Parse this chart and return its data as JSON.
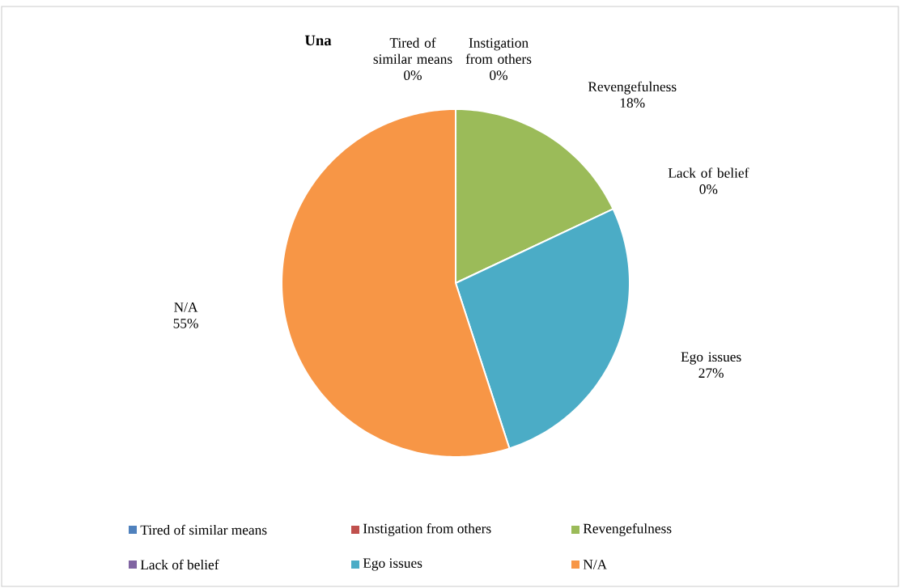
{
  "chart_data": {
    "type": "pie",
    "title": "Una",
    "categories": [
      "Tired of similar means",
      "Instigation from others",
      "Revengefulness",
      "Lack of belief",
      "Ego issues",
      "N/A"
    ],
    "values": [
      0,
      0,
      18,
      0,
      27,
      55
    ],
    "value_labels": [
      "0%",
      "0%",
      "18%",
      "0%",
      "27%",
      "55%"
    ],
    "colors": [
      "#4f81bd",
      "#c0504d",
      "#9bbb59",
      "#8064a2",
      "#4bacc6",
      "#f79646"
    ],
    "legend": "bottom"
  }
}
